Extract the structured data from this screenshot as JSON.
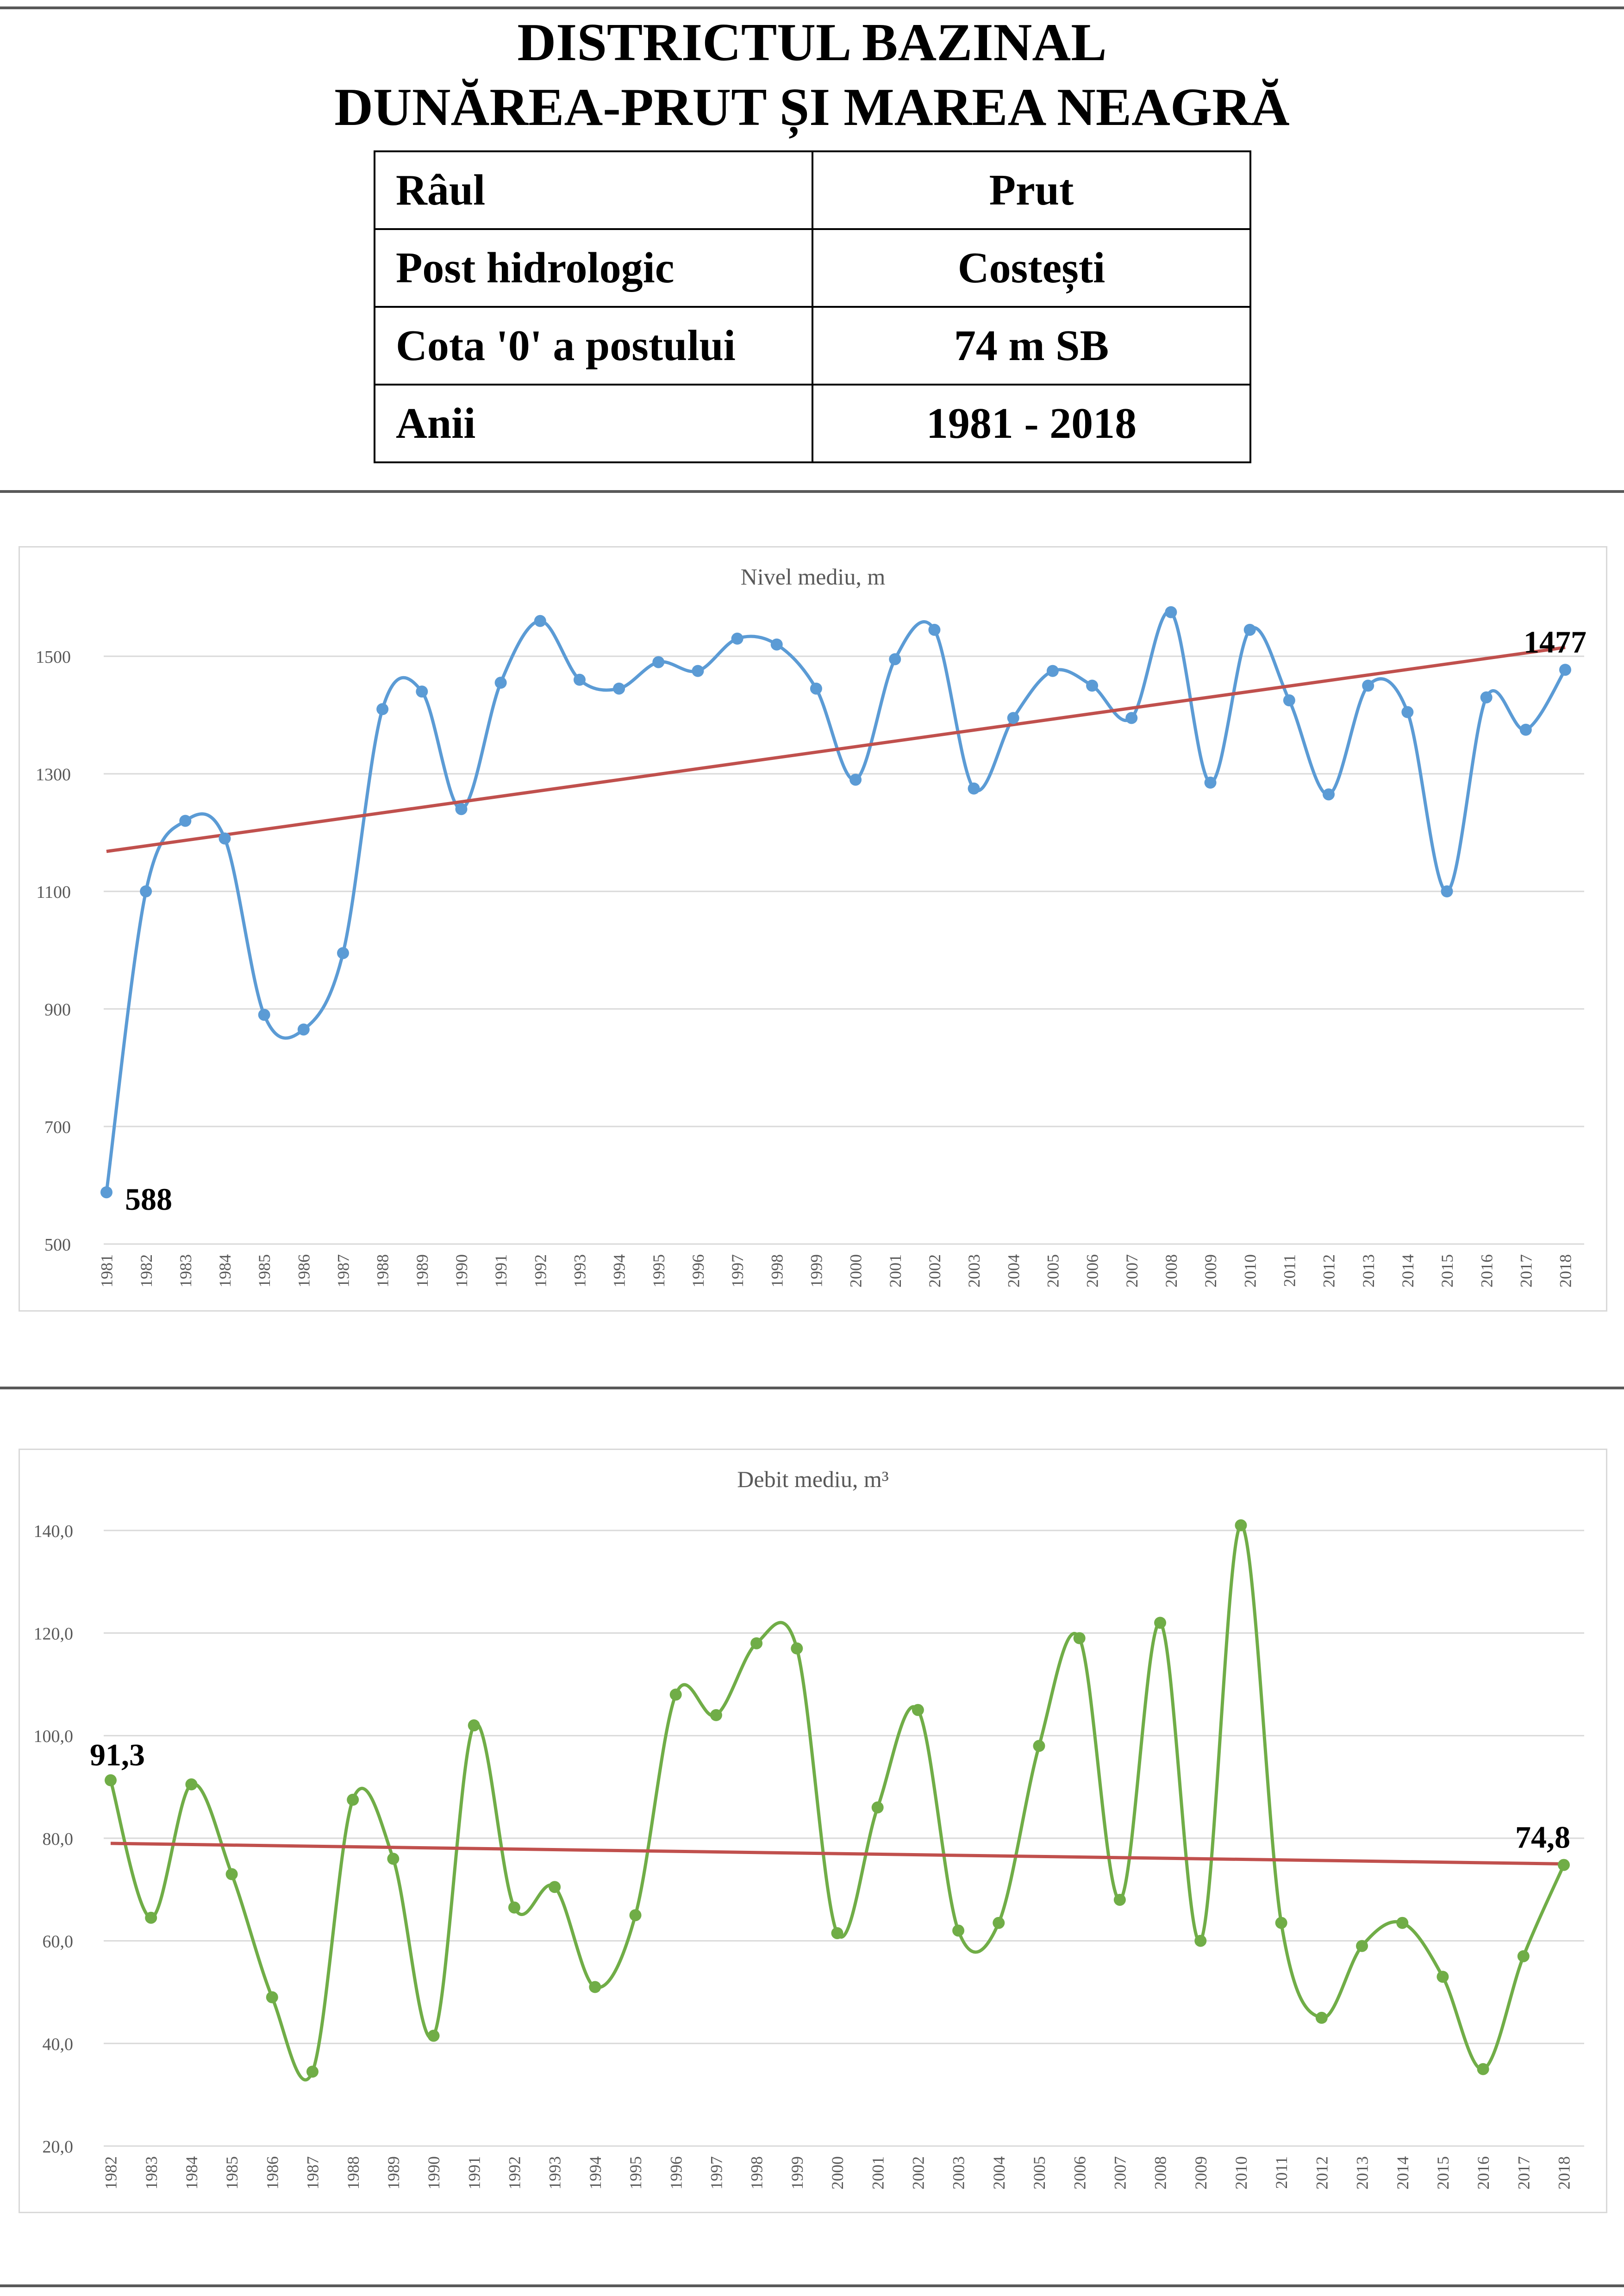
{
  "header": {
    "title_line1": "DISTRICTUL BAZINAL",
    "title_line2": "DUNĂREA-PRUT ȘI MAREA NEAGRĂ"
  },
  "info_table": {
    "rows": [
      {
        "label": "Râul",
        "value": "Prut"
      },
      {
        "label": "Post hidrologic",
        "value": "Costești"
      },
      {
        "label": "Cota '0' a postului",
        "value": "74 m SB"
      },
      {
        "label": "Anii",
        "value": "1981 - 2018"
      }
    ]
  },
  "chart_data": [
    {
      "type": "line",
      "title": "Nivel mediu, m",
      "xlabel": "",
      "ylabel": "",
      "ylim": [
        500,
        1600
      ],
      "yticks": [
        "500",
        "700",
        "900",
        "1100",
        "1300",
        "1500"
      ],
      "y_tick_values": [
        500,
        700,
        900,
        1100,
        1300,
        1500
      ],
      "grid": true,
      "legend": "none",
      "categories": [
        "1981",
        "1982",
        "1983",
        "1984",
        "1985",
        "1986",
        "1987",
        "1988",
        "1989",
        "1990",
        "1991",
        "1992",
        "1993",
        "1994",
        "1995",
        "1996",
        "1997",
        "1998",
        "1999",
        "2000",
        "2001",
        "2002",
        "2003",
        "2004",
        "2005",
        "2006",
        "2007",
        "2008",
        "2009",
        "2010",
        "2011",
        "2012",
        "2013",
        "2014",
        "2015",
        "2016",
        "2017",
        "2018"
      ],
      "series": [
        {
          "color": "#5b9bd5",
          "smooth": true,
          "values": [
            588,
            1100,
            1220,
            1190,
            890,
            865,
            995,
            1410,
            1440,
            1240,
            1455,
            1560,
            1460,
            1445,
            1490,
            1475,
            1530,
            1520,
            1445,
            1290,
            1495,
            1545,
            1275,
            1395,
            1475,
            1450,
            1395,
            1575,
            1285,
            1545,
            1425,
            1265,
            1450,
            1405,
            1100,
            1430,
            1375,
            1477
          ]
        },
        {
          "color": "#c0504d",
          "trendline": true,
          "values_start_end": [
            1168,
            1515
          ]
        }
      ],
      "annotations": [
        {
          "label": "588",
          "category": "1981",
          "value": 588
        },
        {
          "label": "1477",
          "category": "2018",
          "value": 1477
        }
      ]
    },
    {
      "type": "line",
      "title": "Debit mediu, m³",
      "xlabel": "",
      "ylabel": "",
      "ylim": [
        20,
        150
      ],
      "yticks": [
        "20,0",
        "40,0",
        "60,0",
        "80,0",
        "100,0",
        "120,0",
        "140,0"
      ],
      "y_tick_values": [
        20,
        40,
        60,
        80,
        100,
        120,
        140
      ],
      "grid": true,
      "legend": "none",
      "categories": [
        "1982",
        "1983",
        "1984",
        "1985",
        "1986",
        "1987",
        "1988",
        "1989",
        "1990",
        "1991",
        "1992",
        "1993",
        "1994",
        "1995",
        "1996",
        "1997",
        "1998",
        "1999",
        "2000",
        "2001",
        "2002",
        "2003",
        "2004",
        "2005",
        "2006",
        "2007",
        "2008",
        "2009",
        "2010",
        "2011",
        "2012",
        "2013",
        "2014",
        "2015",
        "2016",
        "2017",
        "2018"
      ],
      "series": [
        {
          "color": "#70ad47",
          "smooth": true,
          "values": [
            91.3,
            64.5,
            90.5,
            73,
            49,
            34.5,
            87.5,
            76,
            41.5,
            102,
            66.5,
            70.5,
            51,
            65,
            108,
            104,
            118,
            117,
            61.5,
            86,
            105,
            62,
            63.5,
            98,
            119,
            68,
            122,
            60,
            141,
            63.5,
            45,
            59,
            63.5,
            53,
            35,
            57,
            74.8
          ]
        },
        {
          "color": "#c0504d",
          "trendline": true,
          "values_start_end": [
            79,
            75
          ]
        }
      ],
      "annotations": [
        {
          "label": "91,3",
          "category": "1982",
          "value": 91.3
        },
        {
          "label": "74,8",
          "category": "2018",
          "value": 74.8
        }
      ]
    }
  ]
}
